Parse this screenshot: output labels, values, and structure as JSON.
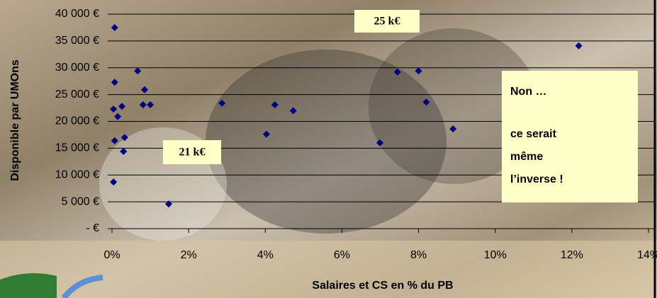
{
  "chart_data": {
    "type": "scatter",
    "x_label": "Salaires et CS en % du PB",
    "y_label": "Disponible par UMOns",
    "x": [
      0.07,
      0.07,
      0.04,
      0.15,
      0.26,
      0.07,
      0.33,
      0.3,
      0.04,
      0.67,
      0.85,
      0.81,
      1.0,
      1.48,
      2.87,
      4.03,
      4.25,
      4.73,
      6.99,
      7.45,
      8.0,
      8.2,
      8.9,
      12.18
    ],
    "values": [
      37500,
      27300,
      22300,
      20900,
      22800,
      16400,
      17000,
      14400,
      8700,
      29400,
      25900,
      23100,
      23100,
      4600,
      23400,
      17600,
      23100,
      22000,
      16000,
      29200,
      29400,
      23600,
      18600,
      34100
    ],
    "color": "#000080",
    "xlim": [
      0,
      14
    ],
    "xticks": [
      {
        "value": 0,
        "label": "0%"
      },
      {
        "value": 2,
        "label": "2%"
      },
      {
        "value": 4,
        "label": "4%"
      },
      {
        "value": 6,
        "label": "6%"
      },
      {
        "value": 8,
        "label": "8%"
      },
      {
        "value": 10,
        "label": "10%"
      },
      {
        "value": 12,
        "label": "12%"
      },
      {
        "value": 14,
        "label": "14%"
      }
    ],
    "ylim": [
      0,
      40000
    ],
    "yticks": [
      {
        "value": 0,
        "label": "-   €"
      },
      {
        "value": 5000,
        "label": "5 000 €"
      },
      {
        "value": 10000,
        "label": "10 000 €"
      },
      {
        "value": 15000,
        "label": "15 000 €"
      },
      {
        "value": 20000,
        "label": "20 000 €"
      },
      {
        "value": 25000,
        "label": "25 000 €"
      },
      {
        "value": 30000,
        "label": "30 000 €"
      },
      {
        "value": 35000,
        "label": "35 000 €"
      },
      {
        "value": 40000,
        "label": "40 000 €"
      }
    ],
    "grid": true,
    "annotations": [
      [
        "25 k€"
      ],
      [
        "21 k€"
      ],
      [
        "Non …",
        "ce serait",
        "même",
        "l’inverse !"
      ]
    ]
  }
}
